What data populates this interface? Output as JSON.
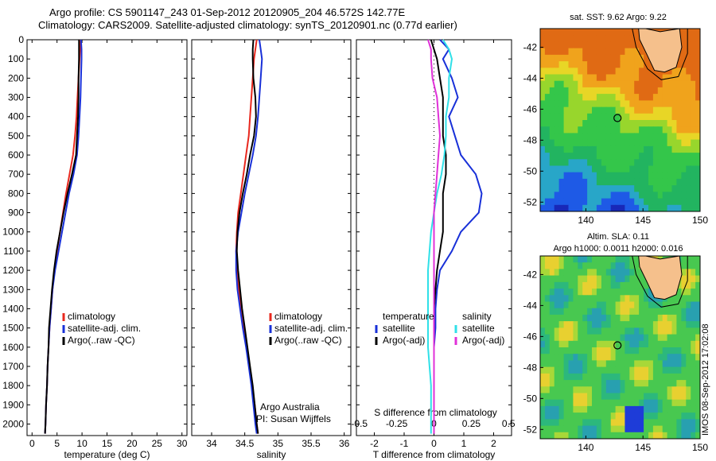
{
  "header": {
    "line1": "Argo profile: CS 5901147_243 01-Sep-2012 20120905_204 46.572S 142.77E",
    "line2": "Climatology: CARS2009. Satellite-adjusted climatology: synTS_20120901.nc (0.77d earlier)"
  },
  "watermark": "IMOS 08-Sep-2012 17:02:08",
  "colors": {
    "climatology": "#e8281e",
    "satellite": "#1830d8",
    "argo": "#000000",
    "cyan": "#30e0e8",
    "magenta": "#e030d8",
    "land": "#f5c08c"
  },
  "chart_data": [
    {
      "type": "line",
      "xlabel": "temperature (deg C)",
      "ylabel": "",
      "xlim": [
        -1,
        31
      ],
      "ylim": [
        2060,
        0
      ],
      "xticks": [
        "0",
        "5",
        "10",
        "15",
        "20",
        "25",
        "30"
      ],
      "yticks": [
        "0",
        "100",
        "200",
        "300",
        "400",
        "500",
        "600",
        "700",
        "800",
        "900",
        "1000",
        "1100",
        "1200",
        "1300",
        "1400",
        "1500",
        "1600",
        "1700",
        "1800",
        "1900",
        "2000"
      ],
      "legend": [
        "climatology",
        "satellite-adj. clim.",
        "Argo(..raw -QC)"
      ],
      "depth": [
        0,
        50,
        100,
        200,
        300,
        400,
        500,
        600,
        700,
        800,
        900,
        1000,
        1100,
        1200,
        1300,
        1400,
        1500,
        1600,
        1700,
        1800,
        1900,
        2000,
        2050
      ],
      "series": [
        {
          "name": "climatology",
          "color": "climatology",
          "values": [
            9.7,
            9.6,
            9.5,
            9.3,
            9.1,
            8.9,
            8.6,
            8.2,
            7.5,
            6.8,
            6.2,
            5.6,
            5.0,
            4.5,
            4.1,
            3.8,
            3.5,
            3.3,
            3.1,
            3.0,
            2.8,
            2.7,
            2.6
          ]
        },
        {
          "name": "satellite-adj. clim.",
          "color": "satellite",
          "values": [
            9.8,
            9.9,
            9.9,
            9.8,
            9.7,
            9.5,
            9.3,
            9.0,
            8.3,
            7.4,
            6.7,
            6.0,
            5.3,
            4.6,
            4.1,
            3.8,
            3.5,
            3.3,
            3.1,
            3.0,
            2.8,
            2.7,
            2.6
          ]
        },
        {
          "name": "Argo(..raw -QC)",
          "color": "argo",
          "values": [
            9.4,
            9.4,
            9.4,
            9.3,
            9.3,
            9.2,
            9.0,
            8.8,
            8.0,
            7.1,
            6.3,
            5.6,
            4.9,
            4.4,
            4.0,
            3.7,
            3.4,
            3.3,
            3.1,
            3.0,
            2.8,
            2.7,
            2.6
          ]
        }
      ]
    },
    {
      "type": "line",
      "xlabel": "salinity",
      "ylabel": "",
      "xlim": [
        33.7,
        36.1
      ],
      "ylim": [
        2060,
        0
      ],
      "xticks": [
        "34",
        "34.5",
        "35",
        "35.5",
        "36"
      ],
      "legend": [
        "climatology",
        "satellite-adj. clim.",
        "Argo(..raw -QC)"
      ],
      "annotations": [
        "Argo Australia",
        "PI: Susan Wijffels"
      ],
      "depth": [
        0,
        50,
        100,
        200,
        300,
        400,
        500,
        600,
        700,
        800,
        900,
        1000,
        1100,
        1200,
        1300,
        1400,
        1500,
        1600,
        1700,
        1800,
        1900,
        2000,
        2050
      ],
      "series": [
        {
          "name": "climatology",
          "color": "climatology",
          "values": [
            34.68,
            34.66,
            34.64,
            34.62,
            34.6,
            34.58,
            34.56,
            34.52,
            34.48,
            34.44,
            34.4,
            34.38,
            34.37,
            34.38,
            34.41,
            34.45,
            34.49,
            34.53,
            34.57,
            34.61,
            34.65,
            34.68,
            34.7
          ]
        },
        {
          "name": "satellite-adj. clim.",
          "color": "satellite",
          "values": [
            34.72,
            34.74,
            34.76,
            34.74,
            34.72,
            34.7,
            34.67,
            34.62,
            34.56,
            34.5,
            34.45,
            34.4,
            34.37,
            34.37,
            34.39,
            34.43,
            34.47,
            34.52,
            34.56,
            34.6,
            34.63,
            34.66,
            34.68
          ]
        },
        {
          "name": "Argo(..raw -QC)",
          "color": "argo",
          "values": [
            34.63,
            34.62,
            34.62,
            34.63,
            34.66,
            34.67,
            34.64,
            34.58,
            34.53,
            34.47,
            34.42,
            34.39,
            34.38,
            34.4,
            34.43,
            34.46,
            34.5,
            34.54,
            34.58,
            34.62,
            34.65,
            34.68,
            34.7
          ]
        }
      ]
    },
    {
      "type": "line",
      "xlabel": "T difference from climatology",
      "top_label": "S difference from climatology",
      "xlim": [
        -2.6,
        2.6
      ],
      "ylim": [
        2060,
        0
      ],
      "xticks": [
        "-2",
        "-1",
        "0",
        "1",
        "2"
      ],
      "top_ticks": [
        "-0.5",
        "-0.25",
        "0",
        "0.25",
        "0.5"
      ],
      "legend_left_title": "temperature",
      "legend_right_title": "salinity",
      "legend": [
        "satellite",
        "Argo(-adj)",
        "satellite",
        "Argo(-adj)"
      ],
      "depth": [
        0,
        50,
        100,
        200,
        300,
        400,
        500,
        600,
        700,
        800,
        900,
        1000,
        1100,
        1200,
        1300,
        1400,
        1500,
        1600,
        1700,
        1800,
        1900,
        2000,
        2050
      ],
      "series": [
        {
          "name": "satellite",
          "group": "temperature",
          "color": "satellite",
          "values": [
            0.2,
            0.5,
            0.3,
            0.6,
            0.8,
            0.5,
            0.7,
            0.9,
            1.4,
            1.6,
            1.5,
            0.9,
            0.6,
            0.2,
            0.1,
            0.05,
            0.05,
            0.0,
            0.0,
            0.0,
            0.0,
            0.0,
            0.0
          ]
        },
        {
          "name": "Argo(-adj)",
          "group": "temperature",
          "color": "argo",
          "values": [
            -0.1,
            0.0,
            0.1,
            0.2,
            0.3,
            0.3,
            0.3,
            0.4,
            0.4,
            0.3,
            0.3,
            0.3,
            0.2,
            0.1,
            0.05,
            0.0,
            0.0,
            0.0,
            0.0,
            0.0,
            0.0,
            0.0,
            0.0
          ]
        },
        {
          "name": "satellite",
          "group": "salinity",
          "color": "cyan",
          "values": [
            0.06,
            0.1,
            0.12,
            0.1,
            0.1,
            0.08,
            0.08,
            0.07,
            0.05,
            0.02,
            0.0,
            -0.02,
            -0.03,
            -0.04,
            -0.04,
            -0.04,
            -0.04,
            -0.04,
            -0.03,
            -0.02,
            -0.02,
            -0.02,
            -0.02
          ]
        },
        {
          "name": "Argo(-adj)",
          "group": "salinity",
          "color": "magenta",
          "values": [
            -0.04,
            -0.02,
            -0.02,
            -0.01,
            0.02,
            0.03,
            0.04,
            0.03,
            0.02,
            0.01,
            0.0,
            0.0,
            0.0,
            0.0,
            0.0,
            0.0,
            0.0,
            0.0,
            0.0,
            0.0,
            0.0,
            0.0,
            0.0
          ]
        }
      ]
    },
    {
      "type": "heatmap",
      "title": "sat. SST: 9.62  Argo: 9.22",
      "xlim": [
        136,
        150
      ],
      "ylim": [
        -52.6,
        -40.8
      ],
      "xticks": [
        "140",
        "145",
        "150"
      ],
      "yticks": [
        "-42",
        "-44",
        "-46",
        "-48",
        "-50",
        "-52"
      ],
      "float_position": [
        142.77,
        -46.572
      ]
    },
    {
      "type": "heatmap",
      "title": "Altim. SLA: 0.11",
      "subtitle": "Argo h1000: 0.0011  h2000: 0.016",
      "xlim": [
        136,
        150
      ],
      "ylim": [
        -52.6,
        -40.8
      ],
      "xticks": [
        "140",
        "145",
        "150"
      ],
      "yticks": [
        "-42",
        "-44",
        "-46",
        "-48",
        "-50",
        "-52"
      ],
      "float_position": [
        142.77,
        -46.572
      ]
    }
  ]
}
